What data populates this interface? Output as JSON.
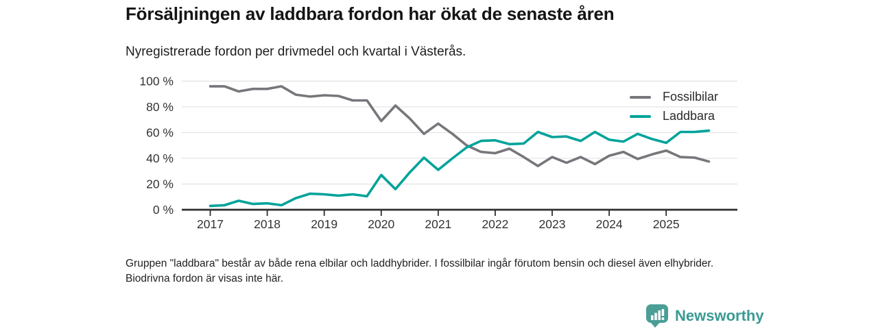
{
  "header": {
    "title": "Försäljningen av laddbara fordon har ökat de senaste åren",
    "subtitle": "Nyregistrerade fordon per drivmedel och kvartal i Västerås."
  },
  "chart_data": {
    "type": "line",
    "title": "Försäljningen av laddbara fordon har ökat de senaste åren",
    "subtitle": "Nyregistrerade fordon per drivmedel och kvartal i Västerås.",
    "xlabel": "",
    "ylabel": "",
    "ylim": [
      0,
      100
    ],
    "grid": "horizontal",
    "legend_position": "top-right",
    "y_ticks": [
      0,
      20,
      40,
      60,
      80,
      100
    ],
    "y_tick_labels": [
      "0 %",
      "20 %",
      "40 %",
      "60 %",
      "80 %",
      "100 %"
    ],
    "x_tick_labels": [
      "2017",
      "2018",
      "2019",
      "2020",
      "2021",
      "2022",
      "2023",
      "2024",
      "2025"
    ],
    "categories": [
      "2017-Q1",
      "2017-Q2",
      "2017-Q3",
      "2017-Q4",
      "2018-Q1",
      "2018-Q2",
      "2018-Q3",
      "2018-Q4",
      "2019-Q1",
      "2019-Q2",
      "2019-Q3",
      "2019-Q4",
      "2020-Q1",
      "2020-Q2",
      "2020-Q3",
      "2020-Q4",
      "2021-Q1",
      "2021-Q2",
      "2021-Q3",
      "2021-Q4",
      "2022-Q1",
      "2022-Q2",
      "2022-Q3",
      "2022-Q4",
      "2023-Q1",
      "2023-Q2",
      "2023-Q3",
      "2023-Q4",
      "2024-Q1",
      "2024-Q2",
      "2024-Q3",
      "2024-Q4",
      "2025-Q1",
      "2025-Q2",
      "2025-Q3",
      "2025-Q4"
    ],
    "series": [
      {
        "name": "Fossilbilar",
        "color": "#76767b",
        "values": [
          96,
          96,
          92,
          94,
          94,
          96,
          89.5,
          88,
          89,
          88.5,
          85,
          85,
          69,
          81,
          71,
          59,
          67,
          59,
          50,
          45,
          44,
          47.5,
          41,
          34,
          41,
          36.5,
          41,
          35.5,
          42,
          45,
          39.5,
          43,
          46,
          41,
          40.5,
          37.5
        ]
      },
      {
        "name": "Laddbara",
        "color": "#00a39a",
        "values": [
          3,
          3.5,
          7,
          4.5,
          5,
          3.5,
          9,
          12.5,
          12,
          11,
          12,
          10.5,
          27,
          16,
          29,
          40.5,
          31,
          40,
          48.5,
          53.5,
          54,
          51,
          51.5,
          60.5,
          56.5,
          57,
          53.5,
          60.5,
          54.5,
          53,
          59,
          55,
          52,
          60.5,
          60.5,
          61.5
        ]
      }
    ]
  },
  "footnote": {
    "text": "Gruppen \"laddbara\" består av både rena elbilar och laddhybrider. I fossilbilar ingår förutom bensin och diesel även elhybrider. Biodrivna fordon är visas inte här."
  },
  "branding": {
    "name": "Newsworthy",
    "icon_color": "#4a9e96",
    "text_color": "#3a9a93"
  },
  "style": {
    "gridline_color": "#e2e2e2",
    "axis_color": "#2e2e2e",
    "tick_label_color": "#333333"
  }
}
